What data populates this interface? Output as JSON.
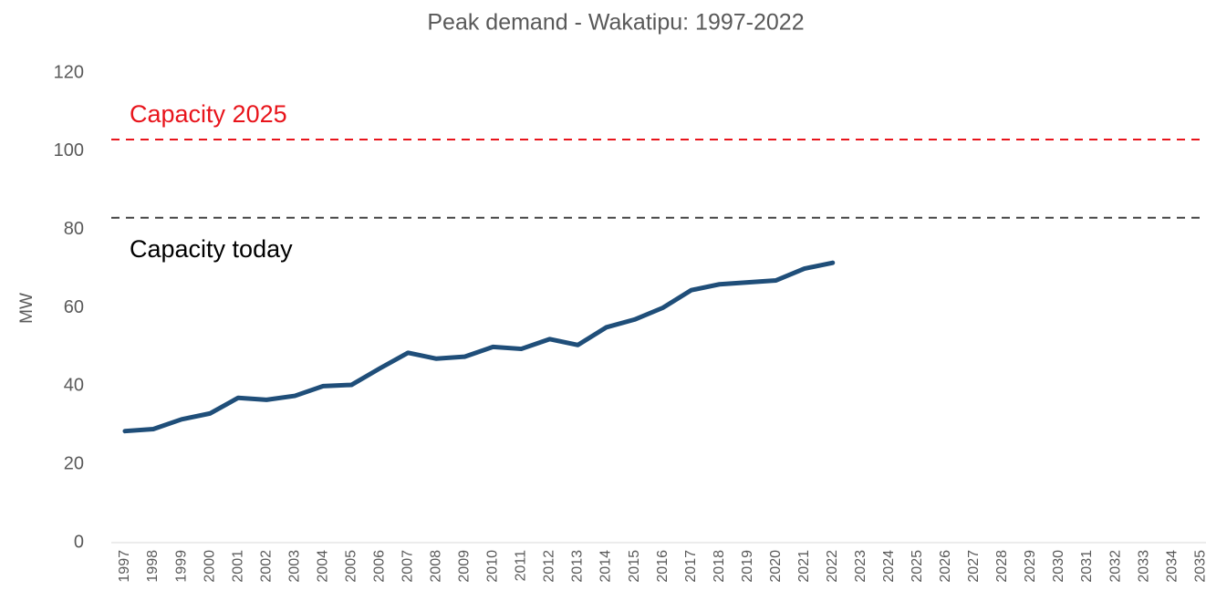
{
  "chart_data": {
    "type": "line",
    "title": "Peak demand - Wakatipu: 1997-2022",
    "y_label": "MW",
    "categories": [
      "1997",
      "1998",
      "1999",
      "2000",
      "2001",
      "2002",
      "2003",
      "2004",
      "2005",
      "2006",
      "2007",
      "2008",
      "2009",
      "2010",
      "2011",
      "2012",
      "2013",
      "2014",
      "2015",
      "2016",
      "2017",
      "2018",
      "2019",
      "2020",
      "2021",
      "2022",
      "2023",
      "2024",
      "2025",
      "2026",
      "2027",
      "2028",
      "2029",
      "2030",
      "2031",
      "2032",
      "2033",
      "2034",
      "2035"
    ],
    "values": [
      28.5,
      29,
      31.5,
      33,
      37,
      36.5,
      37.5,
      40,
      40.3,
      44.5,
      48.5,
      47,
      47.5,
      50,
      49.5,
      52,
      50.5,
      55,
      57,
      60,
      64.5,
      66,
      66.5,
      67,
      70,
      71.5,
      null,
      null,
      null,
      null,
      null,
      null,
      null,
      null,
      null,
      null,
      null,
      null,
      null
    ],
    "color": "#1f4e79",
    "reference_lines": [
      {
        "label": "Capacity 2025",
        "value": 103,
        "color": "#e8141b"
      },
      {
        "label": "Capacity today",
        "value": 83,
        "color": "#404040"
      }
    ],
    "ylim": [
      0,
      120
    ],
    "yticks": [
      0,
      20,
      40,
      60,
      80,
      100,
      120
    ],
    "grid": false
  }
}
